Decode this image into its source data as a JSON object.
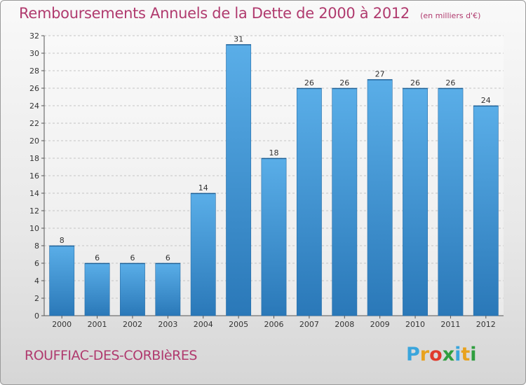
{
  "header": {
    "title": "Remboursements Annuels de la Dette de 2000 à 2012",
    "unit": "(en milliers d'€)"
  },
  "footer": {
    "commune": "ROUFFIAC-DES-CORBIèRES",
    "logo_letters": [
      "P",
      "r",
      "o",
      "x",
      "i",
      "t",
      "i"
    ],
    "logo_colors": [
      "#3aa5dc",
      "#e8a21e",
      "#e03a2c",
      "#2f9e3f",
      "#3aa5dc",
      "#e8a21e",
      "#2f9e3f"
    ]
  },
  "chart_data": {
    "type": "bar",
    "title": "Remboursements Annuels de la Dette de 2000 à 2012",
    "xlabel": "",
    "ylabel": "",
    "categories": [
      "2000",
      "2001",
      "2002",
      "2003",
      "2004",
      "2005",
      "2006",
      "2007",
      "2008",
      "2009",
      "2010",
      "2011",
      "2012"
    ],
    "values": [
      8,
      6,
      6,
      6,
      14,
      31,
      18,
      26,
      26,
      27,
      26,
      26,
      24
    ],
    "ylim": [
      0,
      32
    ],
    "yticks": [
      0,
      2,
      4,
      6,
      8,
      10,
      12,
      14,
      16,
      18,
      20,
      22,
      24,
      26,
      28,
      30,
      32
    ],
    "grid": true,
    "legend": "none",
    "bar_color_top": "#5aaee8",
    "bar_color_bottom": "#2a78b8"
  }
}
